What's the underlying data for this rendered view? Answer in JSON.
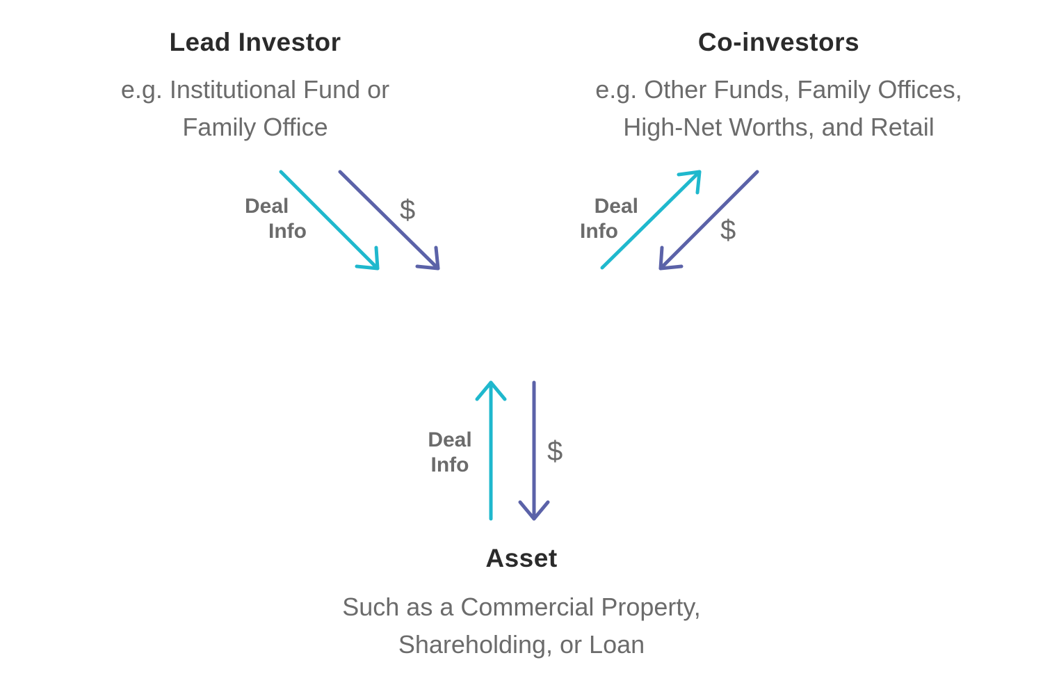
{
  "colors": {
    "deal_info": "#1fb8cd",
    "money": "#5b62a8"
  },
  "lead_investor": {
    "title": "Lead Investor",
    "subtitle_lines": [
      "e.g. Institutional Fund or",
      "Family Office"
    ]
  },
  "co_investors": {
    "title": "Co-investors",
    "subtitle_lines": [
      "e.g. Other Funds, Family Offices,",
      "High-Net Worths, and Retail"
    ]
  },
  "asset": {
    "title": "Asset",
    "subtitle_lines": [
      "Such as a Commercial Property,",
      "Shareholding, or Loan"
    ]
  },
  "flows": {
    "lead": {
      "deal_lines": [
        "Deal",
        "Info"
      ],
      "money": "$"
    },
    "coinv": {
      "deal_lines": [
        "Deal",
        "Info"
      ],
      "money": "$"
    },
    "asset": {
      "deal_lines": [
        "Deal",
        "Info"
      ],
      "money": "$"
    }
  }
}
